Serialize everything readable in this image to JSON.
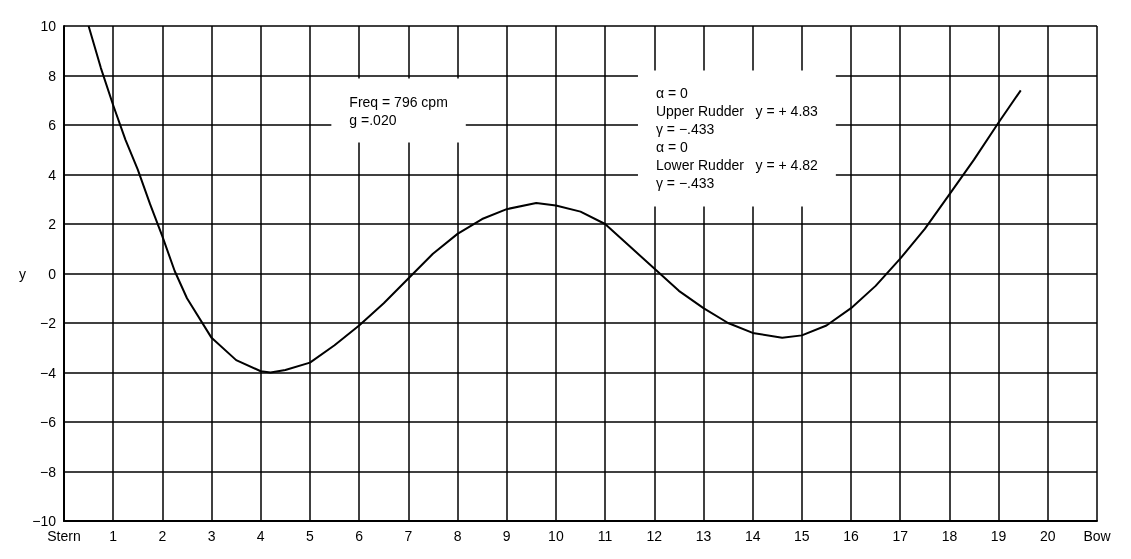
{
  "chart_data": {
    "type": "line",
    "ylabel": "y",
    "x": [
      0.5,
      0.75,
      1,
      1.25,
      1.5,
      1.75,
      2,
      2.25,
      2.5,
      3,
      3.5,
      4,
      4.2,
      4.5,
      5,
      5.5,
      6,
      6.5,
      7,
      7.5,
      8,
      8.5,
      9,
      9.6,
      10,
      10.5,
      11,
      11.5,
      12,
      12.5,
      13,
      13.5,
      14,
      14.6,
      15,
      15.5,
      16,
      16.5,
      17,
      17.5,
      18,
      18.5,
      19,
      19.45
    ],
    "series": [
      {
        "color": "#000000",
        "values": [
          10,
          8.3,
          6.8,
          5.4,
          4.2,
          2.8,
          1.5,
          0.1,
          -1.0,
          -2.6,
          -3.5,
          -3.95,
          -4.0,
          -3.9,
          -3.6,
          -2.9,
          -2.1,
          -1.2,
          -0.2,
          0.8,
          1.6,
          2.2,
          2.6,
          2.85,
          2.75,
          2.5,
          2.0,
          1.1,
          0.2,
          -0.7,
          -1.4,
          -2.0,
          -2.4,
          -2.6,
          -2.5,
          -2.1,
          -1.4,
          -0.5,
          0.6,
          1.8,
          3.2,
          4.6,
          6.1,
          7.4
        ]
      }
    ],
    "xlim": [
      0,
      21
    ],
    "xticks": [
      {
        "value": 0,
        "label": "Stern"
      },
      1,
      2,
      3,
      4,
      5,
      6,
      7,
      8,
      9,
      10,
      11,
      12,
      13,
      14,
      15,
      16,
      17,
      18,
      19,
      20,
      {
        "value": 21,
        "label": "Bow"
      }
    ],
    "ylim": [
      -10,
      10
    ],
    "yticks": [
      -10,
      -8,
      -6,
      -4,
      -2,
      0,
      2,
      4,
      6,
      8,
      10
    ],
    "grid": true,
    "marker": "none",
    "line_style": "solid",
    "annotations": [
      "Freq = 796 cpm\ng =.020",
      "α = 0\nUpper Rudder   y = + 4.83\nγ = −.433\nα = 0\nLower Rudder   y = + 4.82\nγ = −.433"
    ]
  }
}
